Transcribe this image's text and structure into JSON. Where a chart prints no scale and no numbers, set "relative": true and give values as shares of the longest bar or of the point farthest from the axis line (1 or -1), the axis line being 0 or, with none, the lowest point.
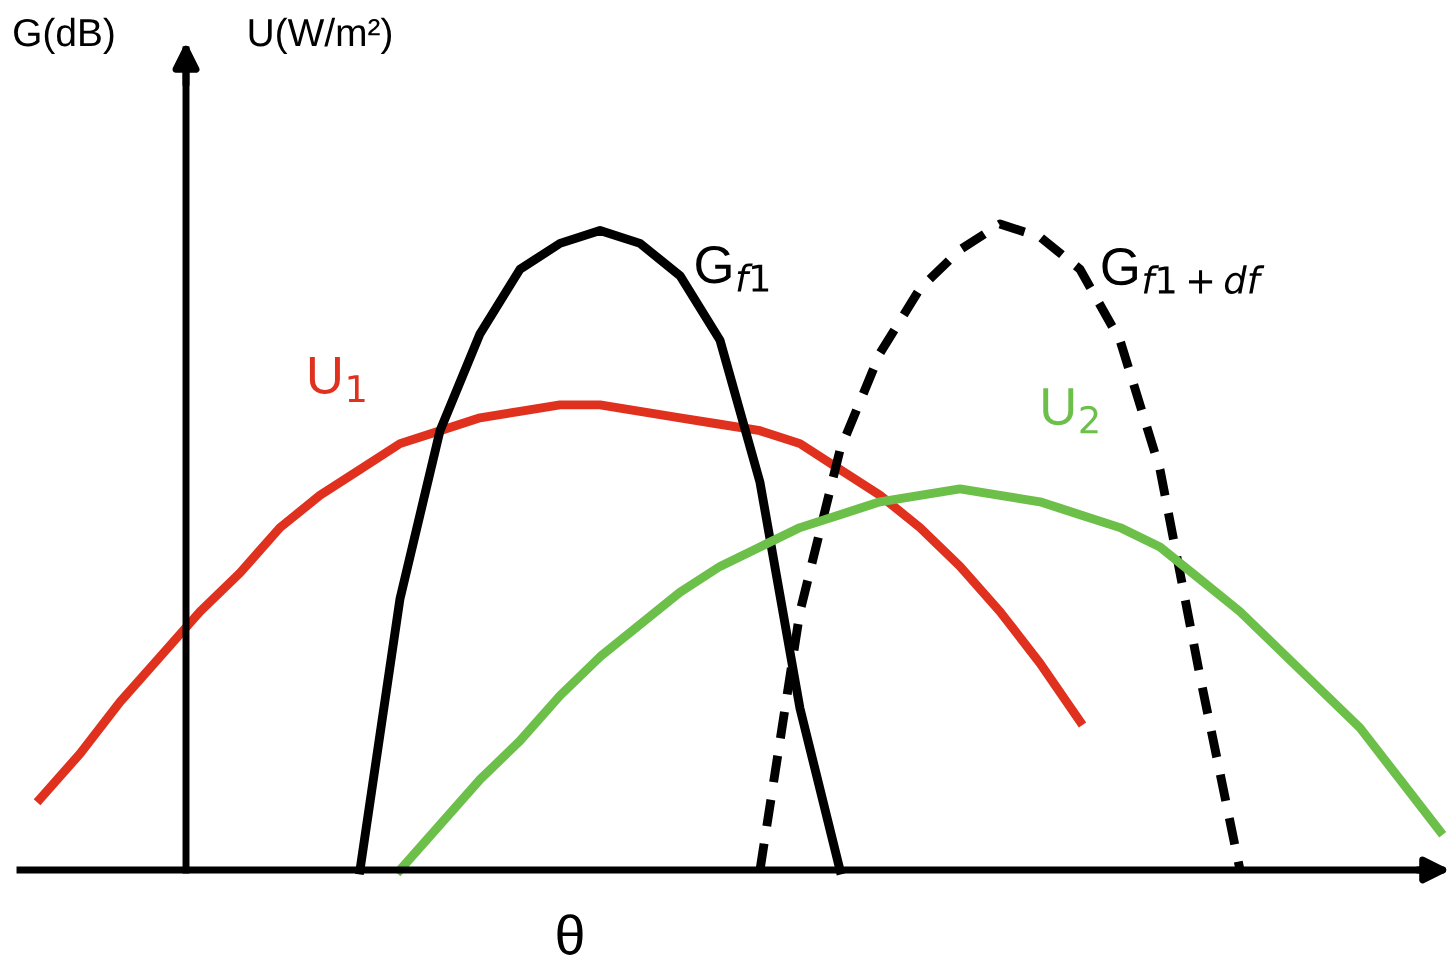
{
  "chart_data": {
    "type": "line",
    "relative": true,
    "xlabel": "θ",
    "ylabel": "G(dB)",
    "annotations": [
      "U(W/m²)"
    ],
    "legend": false,
    "marker": "none",
    "categories": [
      null,
      null,
      null,
      null,
      null,
      null,
      null,
      null,
      null,
      null,
      null,
      null,
      null,
      null,
      null,
      null,
      null,
      null,
      null,
      null,
      null,
      null,
      null,
      null,
      null,
      null,
      null,
      null,
      null,
      null,
      null,
      null,
      null,
      null,
      null,
      null
    ],
    "series": [
      {
        "name": "U$_{1}$",
        "color": "#e0301e",
        "line_style": "solid",
        "values": [
          0.11,
          0.18,
          0.26,
          0.33,
          0.4,
          0.46,
          0.53,
          0.58,
          0.62,
          0.66,
          0.68,
          0.7,
          0.71,
          0.72,
          0.72,
          0.71,
          0.7,
          0.69,
          0.68,
          0.66,
          0.62,
          0.58,
          0.53,
          0.47,
          0.4,
          0.32,
          0.23,
          null,
          null,
          null,
          null,
          null,
          null,
          null,
          null,
          null
        ]
      },
      {
        "name": "G$_{f1}$",
        "color": "#000000",
        "line_style": "solid",
        "values": [
          null,
          null,
          null,
          null,
          null,
          null,
          null,
          null,
          0,
          0.42,
          0.68,
          0.83,
          0.93,
          0.97,
          0.99,
          0.97,
          0.92,
          0.82,
          0.6,
          0.25,
          0,
          null,
          null,
          null,
          null,
          null,
          null,
          null,
          null,
          null,
          null,
          null,
          null,
          null,
          null,
          null
        ]
      },
      {
        "name": "G$_{f1+df}$",
        "color": "#000000",
        "line_style": "dashed",
        "values": [
          null,
          null,
          null,
          null,
          null,
          null,
          null,
          null,
          null,
          null,
          null,
          null,
          null,
          null,
          null,
          null,
          null,
          null,
          0,
          0.4,
          0.65,
          0.8,
          0.9,
          0.96,
          1.0,
          0.98,
          0.93,
          0.82,
          0.62,
          0.3,
          0,
          null,
          null,
          null,
          null,
          null
        ]
      },
      {
        "name": "U$_{2}$",
        "color": "#6cc04a",
        "line_style": "solid",
        "values": [
          null,
          null,
          null,
          null,
          null,
          null,
          null,
          null,
          null,
          0,
          0.07,
          0.14,
          0.2,
          0.27,
          0.33,
          0.38,
          0.43,
          0.47,
          0.5,
          0.53,
          0.55,
          0.57,
          0.58,
          0.59,
          0.58,
          0.57,
          0.55,
          0.53,
          0.5,
          0.45,
          0.4,
          0.34,
          0.28,
          0.22,
          0.14,
          0.06
        ]
      }
    ]
  }
}
